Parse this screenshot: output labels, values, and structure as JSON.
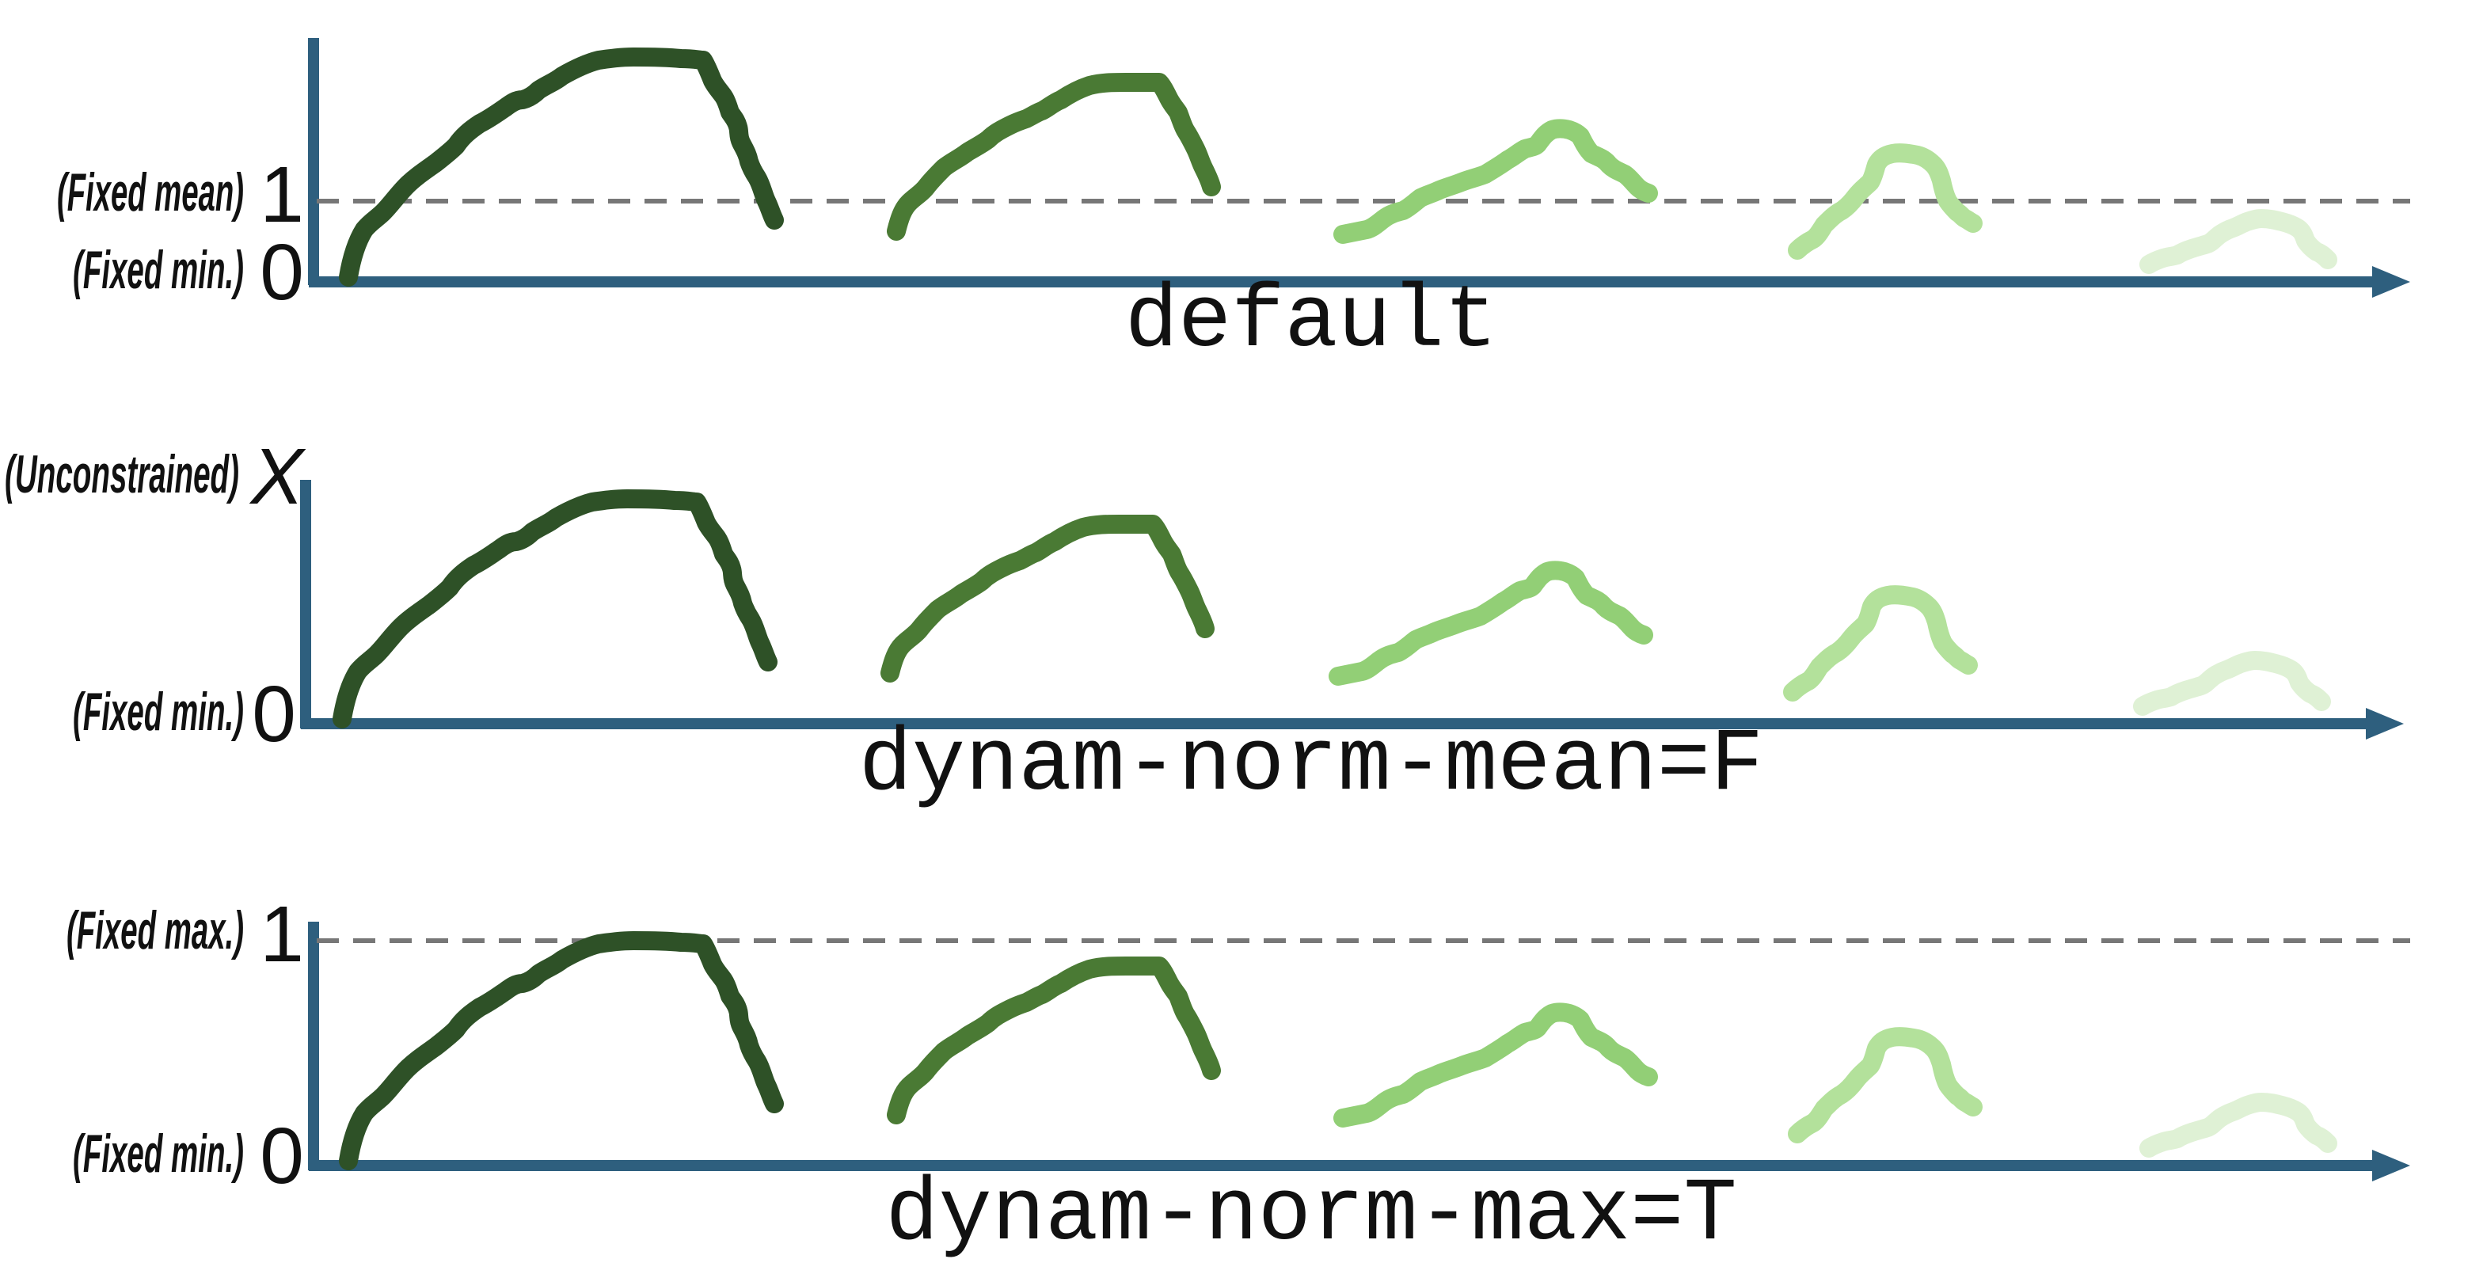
{
  "colors": {
    "axis": "#2e5f7e",
    "reference_line": "#777777",
    "curves": [
      "#2e5127",
      "#4a7a34",
      "#92cf76",
      "#b3e19b",
      "#dff1d5"
    ]
  },
  "panels": [
    {
      "caption": "default",
      "top_tick": "1",
      "top_annotation": "(Fixed mean)",
      "top_tick_italic": false,
      "top_has_dashed_line": true,
      "bottom_tick": "0",
      "bottom_annotation": "(Fixed min.)"
    },
    {
      "caption": "dynam-norm-mean=F",
      "top_tick": "X",
      "top_annotation": "(Unconstrained)",
      "top_tick_italic": true,
      "top_has_dashed_line": false,
      "bottom_tick": "0",
      "bottom_annotation": "(Fixed min.)"
    },
    {
      "caption": "dynam-norm-max=T",
      "top_tick": "1",
      "top_annotation": "(Fixed max.)",
      "top_tick_italic": false,
      "top_has_dashed_line": true,
      "bottom_tick": "0",
      "bottom_annotation": "(Fixed min.)"
    }
  ]
}
